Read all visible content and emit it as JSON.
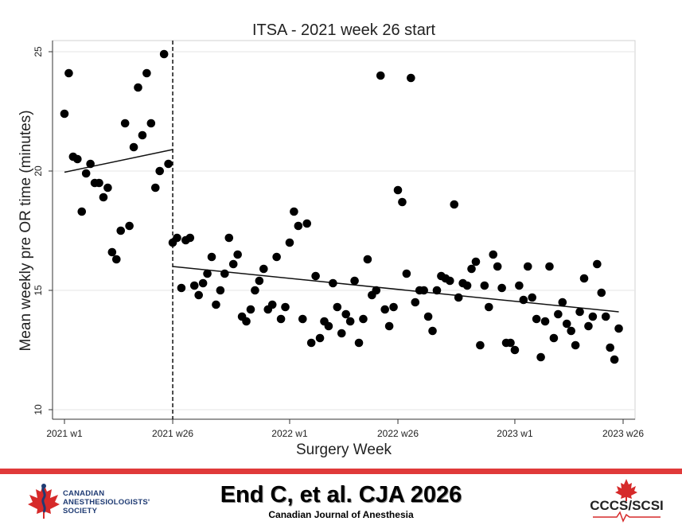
{
  "chart_data": {
    "type": "scatter",
    "title": "ITSA - 2021 week 26 start",
    "xlabel": "Surgery Week",
    "ylabel": "Mean weekly pre OR time (minutes)",
    "ylim": [
      10,
      25
    ],
    "xlim": [
      0,
      129
    ],
    "yticks": [
      10,
      15,
      20,
      25
    ],
    "xticks": [
      {
        "x": 0,
        "label": "2021 w1"
      },
      {
        "x": 25,
        "label": "2021 w26"
      },
      {
        "x": 52,
        "label": "2022 w1"
      },
      {
        "x": 77,
        "label": "2022 w26"
      },
      {
        "x": 104,
        "label": "2023 w1"
      },
      {
        "x": 129,
        "label": "2023 w26"
      }
    ],
    "grid": true,
    "intervention_x": 25,
    "points": [
      [
        0,
        22.4
      ],
      [
        1,
        24.1
      ],
      [
        2,
        20.6
      ],
      [
        3,
        20.5
      ],
      [
        4,
        18.3
      ],
      [
        5,
        19.9
      ],
      [
        6,
        20.3
      ],
      [
        7,
        19.5
      ],
      [
        8,
        19.5
      ],
      [
        9,
        18.9
      ],
      [
        10,
        19.3
      ],
      [
        11,
        16.6
      ],
      [
        12,
        16.3
      ],
      [
        13,
        17.5
      ],
      [
        14,
        22.0
      ],
      [
        15,
        17.7
      ],
      [
        16,
        21.0
      ],
      [
        17,
        23.5
      ],
      [
        18,
        21.5
      ],
      [
        19,
        24.1
      ],
      [
        20,
        22.0
      ],
      [
        21,
        19.3
      ],
      [
        22,
        20.0
      ],
      [
        23,
        24.9
      ],
      [
        24,
        20.3
      ],
      [
        25,
        17.0
      ],
      [
        26,
        17.2
      ],
      [
        27,
        15.1
      ],
      [
        28,
        17.1
      ],
      [
        29,
        17.2
      ],
      [
        30,
        15.2
      ],
      [
        31,
        14.8
      ],
      [
        32,
        15.3
      ],
      [
        33,
        15.7
      ],
      [
        34,
        16.4
      ],
      [
        35,
        14.4
      ],
      [
        36,
        15.0
      ],
      [
        37,
        15.7
      ],
      [
        38,
        17.2
      ],
      [
        39,
        16.1
      ],
      [
        40,
        16.5
      ],
      [
        41,
        13.9
      ],
      [
        42,
        13.7
      ],
      [
        43,
        14.2
      ],
      [
        44,
        15.0
      ],
      [
        45,
        15.4
      ],
      [
        46,
        15.9
      ],
      [
        47,
        14.2
      ],
      [
        48,
        14.4
      ],
      [
        49,
        16.4
      ],
      [
        50,
        13.8
      ],
      [
        51,
        14.3
      ],
      [
        52,
        17.0
      ],
      [
        53,
        18.3
      ],
      [
        54,
        17.7
      ],
      [
        55,
        13.8
      ],
      [
        56,
        17.8
      ],
      [
        57,
        12.8
      ],
      [
        58,
        15.6
      ],
      [
        59,
        13.0
      ],
      [
        60,
        13.7
      ],
      [
        61,
        13.5
      ],
      [
        62,
        15.3
      ],
      [
        63,
        14.3
      ],
      [
        64,
        13.2
      ],
      [
        65,
        14.0
      ],
      [
        66,
        13.7
      ],
      [
        67,
        15.4
      ],
      [
        68,
        12.8
      ],
      [
        69,
        13.8
      ],
      [
        70,
        16.3
      ],
      [
        71,
        14.8
      ],
      [
        72,
        15.0
      ],
      [
        73,
        24.0
      ],
      [
        74,
        14.2
      ],
      [
        75,
        13.5
      ],
      [
        76,
        14.3
      ],
      [
        77,
        19.2
      ],
      [
        78,
        18.7
      ],
      [
        79,
        15.7
      ],
      [
        80,
        23.9
      ],
      [
        81,
        14.5
      ],
      [
        82,
        15.0
      ],
      [
        83,
        15.0
      ],
      [
        84,
        13.9
      ],
      [
        85,
        13.3
      ],
      [
        86,
        15.0
      ],
      [
        87,
        15.6
      ],
      [
        88,
        15.5
      ],
      [
        89,
        15.4
      ],
      [
        90,
        18.6
      ],
      [
        91,
        14.7
      ],
      [
        92,
        15.3
      ],
      [
        93,
        15.2
      ],
      [
        94,
        15.9
      ],
      [
        95,
        16.2
      ],
      [
        96,
        12.7
      ],
      [
        97,
        15.2
      ],
      [
        98,
        14.3
      ],
      [
        99,
        16.5
      ],
      [
        100,
        16.0
      ],
      [
        101,
        15.1
      ],
      [
        102,
        12.8
      ],
      [
        103,
        12.8
      ],
      [
        104,
        12.5
      ],
      [
        105,
        15.2
      ],
      [
        106,
        14.6
      ],
      [
        107,
        16.0
      ],
      [
        108,
        14.7
      ],
      [
        109,
        13.8
      ],
      [
        110,
        12.2
      ],
      [
        111,
        13.7
      ],
      [
        112,
        16.0
      ],
      [
        113,
        13.0
      ],
      [
        114,
        14.0
      ],
      [
        115,
        14.5
      ],
      [
        116,
        13.6
      ],
      [
        117,
        13.3
      ],
      [
        118,
        12.7
      ],
      [
        119,
        14.1
      ],
      [
        120,
        15.5
      ],
      [
        121,
        13.5
      ],
      [
        122,
        13.9
      ],
      [
        123,
        16.1
      ],
      [
        124,
        14.9
      ],
      [
        125,
        13.9
      ],
      [
        126,
        12.6
      ],
      [
        127,
        12.1
      ],
      [
        128,
        13.4
      ]
    ],
    "trend_lines": [
      {
        "x": [
          0,
          25
        ],
        "y": [
          19.95,
          20.9
        ]
      },
      {
        "x": [
          25,
          128
        ],
        "y": [
          16.0,
          14.1
        ]
      }
    ]
  },
  "footer": {
    "citation": "End C, et al. CJA 2026",
    "journal": "Canadian Journal of Anesthesia",
    "cas_logo_text": [
      "CANADIAN",
      "ANESTHESIOLOGISTS'",
      "SOCIETY"
    ],
    "cccs_logo_text": "CCCS/SCSI",
    "bar_color": "#e03a3a"
  }
}
